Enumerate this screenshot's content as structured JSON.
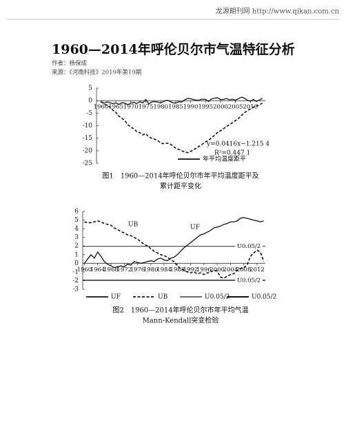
{
  "header": {
    "site": "龙源期刊网 http://www.qikan.com.cn"
  },
  "article": {
    "title": "1960—2014年呼伦贝尔市气温特征分析",
    "author": "作者：杨保成",
    "source": "来源：《河南科技》2019年第19期"
  },
  "chart_data": [
    {
      "type": "line",
      "caption": [
        "图1　1960—2014年呼伦贝尔市年平均温度距平及",
        "累计距平变化"
      ],
      "x": [
        1960,
        1961,
        1962,
        1963,
        1964,
        1965,
        1966,
        1967,
        1968,
        1969,
        1970,
        1971,
        1972,
        1973,
        1974,
        1975,
        1976,
        1977,
        1978,
        1979,
        1980,
        1981,
        1982,
        1983,
        1984,
        1985,
        1986,
        1987,
        1988,
        1989,
        1990,
        1991,
        1992,
        1993,
        1994,
        1995,
        1996,
        1997,
        1998,
        1999,
        2000,
        2001,
        2002,
        2003,
        2004,
        2005,
        2006,
        2007,
        2008,
        2009,
        2010,
        2011,
        2012,
        2013,
        2014
      ],
      "series": [
        {
          "name": "年平均温度距平",
          "color": "#111111",
          "dashed": false,
          "values": [
            -0.3,
            -1.0,
            -0.5,
            -0.8,
            -1.2,
            -0.9,
            -1.5,
            -0.8,
            -1.0,
            -1.6,
            -1.0,
            -0.7,
            -1.1,
            -0.4,
            -0.9,
            0.5,
            -1.3,
            -0.5,
            -0.4,
            -0.6,
            -0.9,
            -0.3,
            0.2,
            -0.2,
            -0.8,
            -1.0,
            -0.4,
            -0.6,
            0.3,
            0.9,
            0.8,
            0.4,
            0.2,
            0.3,
            0.6,
            0.5,
            -0.3,
            0.7,
            1.0,
            1.2,
            0.4,
            0.5,
            0.9,
            0.3,
            0.6,
            0.2,
            0.8,
            1.4,
            1.0,
            0.1,
            -0.2,
            0.5,
            -0.3,
            0.2,
            1.0
          ]
        },
        {
          "color": "#111111",
          "dashed": true,
          "values": [
            -0.3,
            -1.3,
            -1.8,
            -2.6,
            -3.8,
            -4.7,
            -6.2,
            -7.0,
            -8.0,
            -9.6,
            -10.6,
            -11.3,
            -12.4,
            -12.8,
            -13.7,
            -13.2,
            -14.5,
            -15.0,
            -15.4,
            -16.0,
            -16.9,
            -17.2,
            -17.0,
            -17.2,
            -18.0,
            -19.0,
            -19.4,
            -20.0,
            -20.5,
            -20.8,
            -20.3,
            -19.6,
            -18.9,
            -18.1,
            -17.3,
            -16.5,
            -15.8,
            -14.9,
            -13.8,
            -12.7,
            -12.0,
            -11.2,
            -10.3,
            -9.6,
            -8.8,
            -8.0,
            -7.1,
            -5.9,
            -4.8,
            -4.0,
            -3.3,
            -2.6,
            -2.1,
            -1.6,
            -1.0
          ]
        }
      ],
      "xlim": [
        1958.5,
        2015
      ],
      "ylim": [
        -25,
        5
      ],
      "yticks": [
        5,
        0,
        -5,
        -10,
        -15,
        -20,
        -25
      ],
      "xticks": [
        1960,
        1965,
        1970,
        1975,
        1980,
        1985,
        1990,
        1995,
        2000,
        2005,
        2010
      ],
      "annotations": [
        "y=0.0416x−1.215 4",
        "R²=0.447 1"
      ]
    },
    {
      "type": "line",
      "caption": [
        "图2　1960—2014年呼伦贝尔市年平均气温",
        "Mann-Kendall突变检验"
      ],
      "x": [
        1960,
        1961,
        1962,
        1963,
        1964,
        1965,
        1966,
        1967,
        1968,
        1969,
        1970,
        1971,
        1972,
        1973,
        1974,
        1975,
        1976,
        1977,
        1978,
        1979,
        1980,
        1981,
        1982,
        1983,
        1984,
        1985,
        1986,
        1987,
        1988,
        1989,
        1990,
        1991,
        1992,
        1993,
        1994,
        1995,
        1996,
        1997,
        1998,
        1999,
        2000,
        2001,
        2002,
        2003,
        2004,
        2005,
        2006,
        2007,
        2008,
        2009,
        2010,
        2011,
        2012,
        2013,
        2014
      ],
      "series": [
        {
          "name": "UF",
          "color": "#111111",
          "dashed": false,
          "values": [
            0,
            0.5,
            1.0,
            0.6,
            1.3,
            0.8,
            0.2,
            -0.1,
            -0.3,
            -0.5,
            -0.4,
            -0.3,
            -0.4,
            -0.1,
            -0.2,
            0.2,
            0.1,
            0.0,
            0.1,
            0.2,
            0.3,
            0.2,
            0.5,
            0.6,
            0.4,
            0.3,
            0.6,
            0.7,
            1.0,
            1.4,
            1.8,
            2.1,
            2.4,
            2.7,
            3.0,
            3.3,
            3.4,
            3.6,
            3.8,
            4.1,
            4.2,
            4.3,
            4.5,
            4.6,
            4.8,
            4.8,
            4.9,
            5.2,
            5.3,
            5.2,
            5.1,
            5.0,
            4.9,
            4.8,
            4.9
          ]
        },
        {
          "name": "UB",
          "color": "#111111",
          "dashed": true,
          "values": [
            4.8,
            4.7,
            4.7,
            4.8,
            4.9,
            4.8,
            4.6,
            4.5,
            4.4,
            4.1,
            3.9,
            3.7,
            3.5,
            3.3,
            3.2,
            3.0,
            2.8,
            2.5,
            2.2,
            2.0,
            1.7,
            1.4,
            1.2,
            1.0,
            0.9,
            0.7,
            0.4,
            0.2,
            -0.3,
            -0.6,
            -0.8,
            -1.0,
            -1.1,
            -1.0,
            -1.2,
            -1.1,
            -1.3,
            -1.1,
            -1.0,
            -0.8,
            -0.9,
            -1.6,
            -1.7,
            -1.5,
            -1.3,
            -1.2,
            -0.8,
            -0.6,
            -0.5,
            -0.2,
            0.8,
            1.2,
            1.5,
            1.3,
            0.2
          ]
        }
      ],
      "reference_lines": [
        {
          "name": "U0.05/2",
          "value": 1.96
        },
        {
          "name": "U0.05/2",
          "value": -1.96
        }
      ],
      "xlim": [
        1959.5,
        2014.5
      ],
      "ylim": [
        -3,
        6
      ],
      "yticks": [
        6,
        5,
        4,
        3,
        2,
        1,
        0,
        -1,
        -2,
        -3
      ],
      "xticks": [
        1960,
        1964,
        1968,
        1972,
        1976,
        1980,
        1984,
        1988,
        1992,
        1996,
        2000,
        2004,
        2008,
        2012
      ],
      "annotations": [
        "UB",
        "UF"
      ]
    }
  ]
}
